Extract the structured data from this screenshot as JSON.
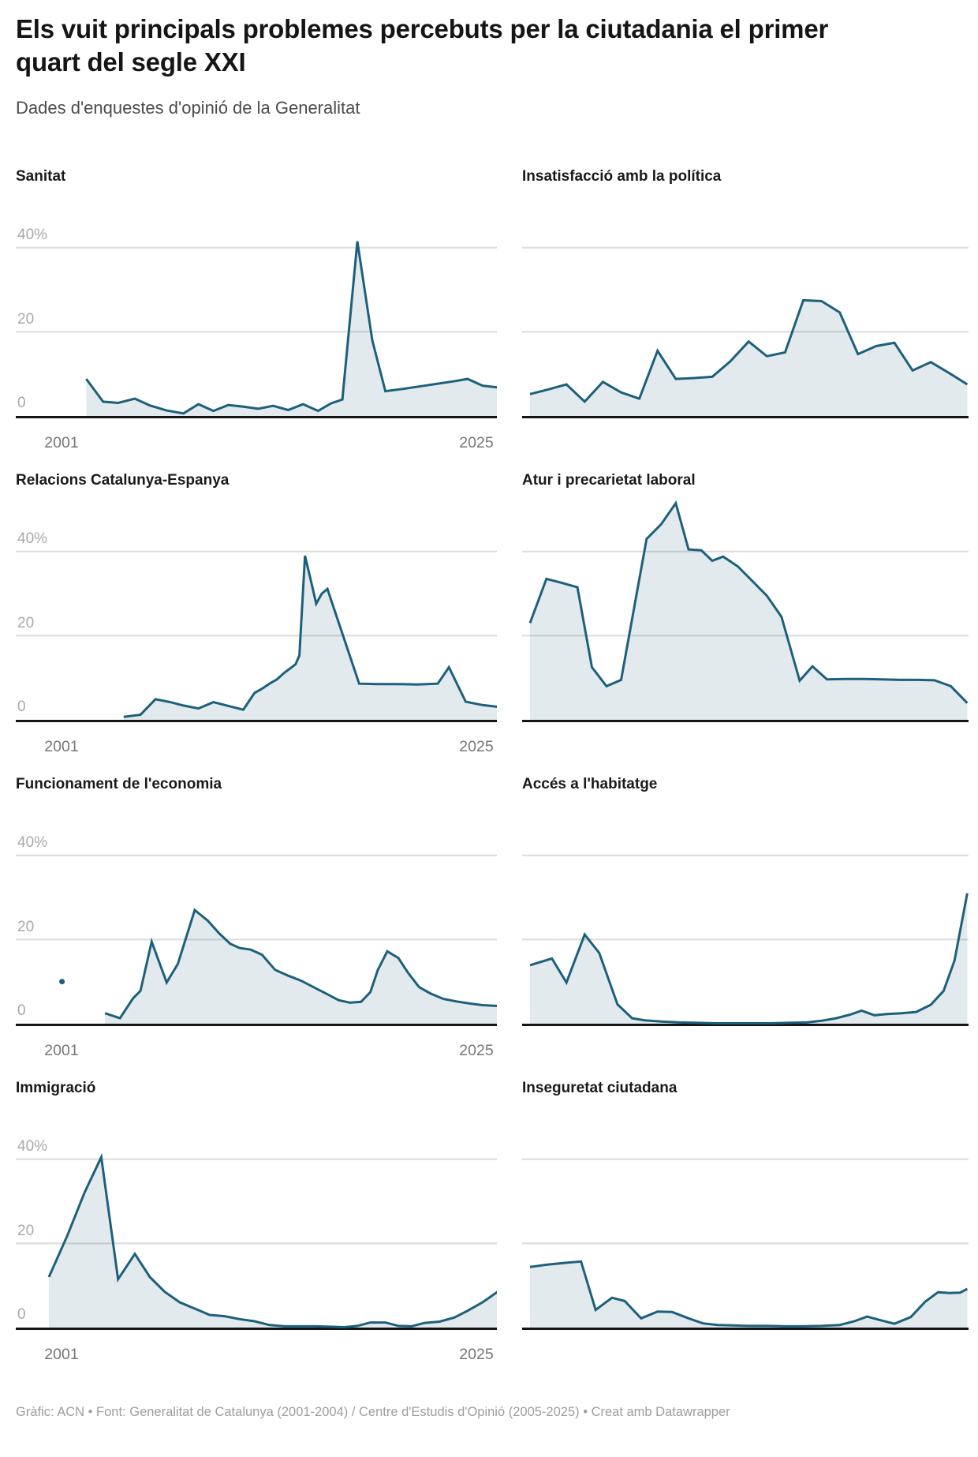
{
  "header": {
    "title": "Els vuit principals problemes percebuts per la ciutadania el primer quart del segle XXI",
    "subtitle": "Dades d'enquestes d'opinió de la Generalitat"
  },
  "axes": {
    "y_top": "40%",
    "y_mid": "20",
    "y_zero": "0",
    "x_start": "2001",
    "x_end": "2025"
  },
  "colors": {
    "line": "#1d607c",
    "fill": "rgba(29,96,124,0.13)",
    "grid": "#dcdcdc",
    "axis": "#151515",
    "y_label": "#a9a9a9",
    "x_label": "#767676"
  },
  "chart_data": [
    {
      "id": "sanitat",
      "title": "Sanitat",
      "type": "area",
      "column": "left",
      "unit": "%",
      "x_range": [
        2001,
        2025
      ],
      "ylim": [
        0,
        55
      ],
      "grid_on": true,
      "x": [
        2003,
        2003.9,
        2004.7,
        2005.6,
        2006.4,
        2007.3,
        2008.2,
        2009,
        2009.8,
        2010.6,
        2011.4,
        2012.2,
        2013,
        2013.8,
        2014.6,
        2015.4,
        2016.1,
        2016.7,
        2017.5,
        2018.3,
        2019,
        2019.9,
        2020.8,
        2021.7,
        2022.6,
        2023.4,
        2024.2,
        2025
      ],
      "values": [
        8.8,
        3.4,
        3.1,
        4.1,
        2.5,
        1.3,
        0.6,
        2.8,
        1.2,
        2.6,
        2.2,
        1.7,
        2.4,
        1.4,
        2.8,
        1.2,
        3.0,
        3.9,
        41.5,
        18,
        5.9,
        6.4,
        7.0,
        7.6,
        8.2,
        8.8,
        7.2,
        6.8
      ]
    },
    {
      "id": "insatisfaccio-politica",
      "title": "Insatisfacció amb la política",
      "type": "area",
      "column": "right",
      "unit": "%",
      "x_range": [
        2001,
        2025
      ],
      "ylim": [
        0,
        55
      ],
      "grid_on": true,
      "x": [
        2001,
        2002,
        2003,
        2004,
        2005,
        2006,
        2007,
        2008,
        2009,
        2010,
        2011,
        2012,
        2013,
        2014,
        2015,
        2016,
        2017,
        2018,
        2019,
        2020,
        2021,
        2022,
        2023,
        2024,
        2025
      ],
      "values": [
        5.2,
        6.3,
        7.5,
        3.4,
        8.1,
        5.6,
        4.1,
        15.5,
        8.8,
        9.0,
        9.3,
        13.0,
        17.7,
        14.2,
        15.1,
        27.5,
        27.3,
        24.6,
        14.7,
        16.6,
        17.4,
        10.8,
        12.8,
        10.2,
        7.5
      ]
    },
    {
      "id": "relacions-catalunya-espanya",
      "title": "Relacions Catalunya-Espanya",
      "type": "area",
      "column": "left",
      "unit": "%",
      "x_range": [
        2001,
        2025
      ],
      "ylim": [
        0,
        55
      ],
      "grid_on": true,
      "x": [
        2005,
        2005.9,
        2006.7,
        2007.5,
        2008.2,
        2009,
        2009.8,
        2010.6,
        2011.4,
        2012,
        2012.4,
        2012.8,
        2013.2,
        2013.6,
        2013.9,
        2014.2,
        2014.4,
        2014.7,
        2015,
        2015.3,
        2015.6,
        2015.9,
        2017.6,
        2018.6,
        2019.6,
        2020.7,
        2021.8,
        2022.4,
        2023.3,
        2024.2,
        2025
      ],
      "values": [
        0.7,
        1.2,
        4.9,
        4.2,
        3.4,
        2.7,
        4.2,
        3.3,
        2.4,
        6.4,
        7.4,
        8.6,
        9.6,
        11.2,
        12.2,
        13.2,
        15.3,
        39,
        33.4,
        27.6,
        30,
        31.1,
        8.6,
        8.5,
        8.5,
        8.4,
        8.6,
        12.5,
        4.3,
        3.5,
        3.1
      ]
    },
    {
      "id": "atur-precarietat",
      "title": "Atur i precarietat laboral",
      "type": "area",
      "column": "right",
      "unit": "%",
      "x_range": [
        2001,
        2025
      ],
      "ylim": [
        0,
        55
      ],
      "grid_on": true,
      "x": [
        2001,
        2001.9,
        2002.8,
        2003.6,
        2004.4,
        2005.2,
        2006,
        2007.4,
        2008.2,
        2009,
        2009.7,
        2010.4,
        2011,
        2011.6,
        2012.4,
        2013.2,
        2014,
        2014.8,
        2015.8,
        2016.5,
        2017.3,
        2018.3,
        2019.3,
        2020.3,
        2021.3,
        2022.3,
        2023.2,
        2024.1,
        2025
      ],
      "values": [
        23,
        33.5,
        32.5,
        31.5,
        12.5,
        8,
        9.5,
        43,
        46.5,
        51.5,
        40.5,
        40.3,
        37.8,
        38.8,
        36.5,
        33,
        29.5,
        24.5,
        9.3,
        12.7,
        9.6,
        9.7,
        9.7,
        9.6,
        9.5,
        9.5,
        9.4,
        8,
        4
      ]
    },
    {
      "id": "funcionament-economia",
      "title": "Funcionament de l'economia",
      "type": "area",
      "column": "left",
      "unit": "%",
      "x_range": [
        2001,
        2025
      ],
      "ylim": [
        0,
        55
      ],
      "grid_on": true,
      "dot": [
        2001.7,
        10
      ],
      "x": [
        2004,
        2004.8,
        2005.5,
        2005.9,
        2006.5,
        2007.3,
        2007.9,
        2008.8,
        2009.5,
        2010.1,
        2010.7,
        2011.2,
        2011.8,
        2012.4,
        2013.1,
        2013.8,
        2014.5,
        2015.2,
        2015.9,
        2016.5,
        2017.1,
        2017.7,
        2018.2,
        2018.6,
        2019.1,
        2019.7,
        2020.2,
        2020.8,
        2021.4,
        2022.1,
        2022.8,
        2023.5,
        2024.2,
        2025
      ],
      "values": [
        2.5,
        1.3,
        6,
        7.8,
        19.5,
        9.8,
        14.2,
        27,
        24.5,
        21.5,
        19,
        18,
        17.6,
        16.4,
        12.8,
        11.4,
        10.2,
        8.6,
        7,
        5.6,
        5,
        5.2,
        7.5,
        12.8,
        17.2,
        15.6,
        12.2,
        8.7,
        7.2,
        5.9,
        5.3,
        4.8,
        4.4,
        4.2
      ]
    },
    {
      "id": "acces-habitatge",
      "title": "Accés a l'habitatge",
      "type": "area",
      "column": "right",
      "unit": "%",
      "x_range": [
        2001,
        2025
      ],
      "ylim": [
        0,
        55
      ],
      "grid_on": true,
      "x": [
        2001,
        2002.2,
        2003,
        2004,
        2004.8,
        2005.8,
        2006.6,
        2007.3,
        2008.2,
        2009.2,
        2010.2,
        2011.2,
        2012.2,
        2013.2,
        2014.2,
        2015.2,
        2016.2,
        2017,
        2017.8,
        2018.6,
        2019.2,
        2019.9,
        2020.6,
        2021.4,
        2022.2,
        2023,
        2023.7,
        2024.3,
        2025
      ],
      "values": [
        13.9,
        15.5,
        9.8,
        21.2,
        16.8,
        4.6,
        1.3,
        0.8,
        0.5,
        0.3,
        0.2,
        0.1,
        0.1,
        0.1,
        0.1,
        0.2,
        0.3,
        0.7,
        1.3,
        2.2,
        3.1,
        2.0,
        2.3,
        2.5,
        2.8,
        4.5,
        7.8,
        15,
        31
      ]
    },
    {
      "id": "immigracio",
      "title": "Immigració",
      "type": "area",
      "column": "left",
      "unit": "%",
      "x_range": [
        2001,
        2025
      ],
      "ylim": [
        0,
        55
      ],
      "grid_on": true,
      "x": [
        2001,
        2002,
        2002.9,
        2003.8,
        2004.7,
        2005.6,
        2006.4,
        2007.2,
        2008,
        2008.8,
        2009.6,
        2010.4,
        2011.2,
        2012,
        2012.8,
        2013.6,
        2014.4,
        2015.2,
        2016,
        2016.8,
        2017.5,
        2018.2,
        2019,
        2019.7,
        2020.4,
        2021.1,
        2021.9,
        2022.7,
        2023.4,
        2024.2,
        2025
      ],
      "values": [
        12,
        22,
        32,
        40.5,
        11.5,
        17.5,
        12,
        8.5,
        6,
        4.5,
        3,
        2.7,
        2,
        1.5,
        0.6,
        0.3,
        0.3,
        0.3,
        0.2,
        0.1,
        0.4,
        1.2,
        1.2,
        0.4,
        0.3,
        1.1,
        1.4,
        2.4,
        4,
        6,
        8.5
      ]
    },
    {
      "id": "inseguretat-ciutadana",
      "title": "Inseguretat ciutadana",
      "type": "area",
      "column": "right",
      "unit": "%",
      "x_range": [
        2001,
        2025
      ],
      "ylim": [
        0,
        55
      ],
      "grid_on": true,
      "x": [
        2001,
        2002,
        2003,
        2003.8,
        2004.6,
        2005.5,
        2006.2,
        2007.1,
        2008,
        2008.8,
        2009.7,
        2010.5,
        2011.3,
        2012.1,
        2013,
        2014,
        2015,
        2016,
        2017,
        2018,
        2018.8,
        2019.5,
        2020.2,
        2021,
        2021.9,
        2022.7,
        2023.4,
        2024,
        2024.6,
        2025
      ],
      "values": [
        14.4,
        15,
        15.4,
        15.7,
        4.2,
        7.1,
        6.3,
        2.2,
        3.8,
        3.7,
        2.2,
        1.0,
        0.6,
        0.5,
        0.4,
        0.4,
        0.3,
        0.3,
        0.4,
        0.6,
        1.5,
        2.6,
        1.8,
        0.9,
        2.5,
        6.2,
        8.4,
        8.2,
        8.3,
        9.2
      ]
    }
  ],
  "footer": {
    "credit": "Gràfic: ACN • Font: Generalitat de Catalunya (2001-2004) / Centre d'Estudis d'Opinió (2005-2025) • Creat amb Datawrapper"
  }
}
